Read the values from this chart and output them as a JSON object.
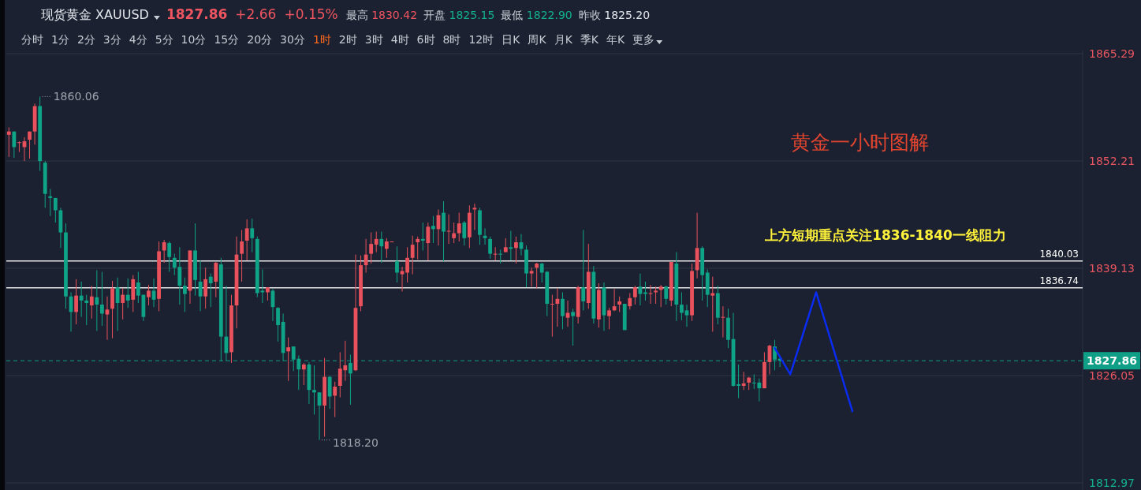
{
  "chart_data": {
    "type": "candlestick",
    "title": "现货黄金 XAUUSD",
    "annotations": [
      "1827.86",
      "+2.66",
      "+0.15%",
      "最高 1830.42",
      "开盘 1825.15",
      "最低 1822.90",
      "昨收 1825.20",
      "分时",
      "1分",
      "2分",
      "3分",
      "4分",
      "5分",
      "10分",
      "15分",
      "20分",
      "30分",
      "1时",
      "2时",
      "3时",
      "4时",
      "6时",
      "8时",
      "12时",
      "日K",
      "周K",
      "月K",
      "季K",
      "年K",
      "更多",
      "黄金一小时图解",
      "上方短期重点关注1836-1840一线阻力",
      "1860.06",
      "1818.20"
    ],
    "categories": [
      null,
      null,
      null,
      null,
      null,
      null,
      null,
      null,
      null,
      null,
      null,
      null,
      null,
      null,
      null,
      null,
      null,
      null,
      null,
      null,
      null,
      null,
      null,
      null,
      null,
      null,
      null,
      null,
      null,
      null,
      null,
      null,
      null,
      null,
      null,
      null,
      null,
      null,
      null,
      null,
      null,
      null,
      null,
      null,
      null,
      null,
      null,
      null,
      null,
      null,
      null,
      null,
      null,
      null,
      null,
      null,
      null,
      null,
      null,
      null,
      null,
      null,
      null,
      null,
      null,
      null,
      null,
      null,
      null,
      null,
      null,
      null,
      null,
      null,
      null,
      null,
      null,
      null,
      null,
      null,
      null,
      null,
      null,
      null,
      null,
      null,
      null,
      null,
      null,
      null,
      null,
      null,
      null,
      null,
      null,
      null,
      null,
      null,
      null,
      null,
      null,
      null,
      null,
      null,
      null,
      null,
      null,
      null,
      null,
      null,
      null,
      null,
      null,
      null,
      null,
      null,
      null,
      null,
      null,
      null,
      null,
      null,
      null,
      null,
      null,
      null,
      null,
      null,
      null,
      null,
      null,
      null,
      null,
      null,
      null,
      null,
      null,
      null,
      null,
      null,
      null,
      null,
      null,
      null,
      null,
      null,
      null,
      null,
      null,
      null,
      null,
      null,
      null,
      null,
      null,
      null,
      null,
      null,
      null,
      null,
      null,
      null,
      null,
      null,
      null,
      null,
      null,
      null,
      null,
      null,
      null,
      null,
      null,
      null,
      null,
      null,
      null,
      null,
      null,
      null,
      null,
      null,
      null,
      null,
      null,
      null,
      null,
      null,
      null,
      null,
      null,
      null,
      null,
      null,
      null,
      null,
      null,
      null,
      null,
      null,
      null,
      null,
      null,
      null,
      null,
      null,
      null,
      null
    ],
    "ohlc": [
      [
        1855.4,
        1856.3,
        1852.7,
        1855.8
      ],
      [
        1855.8,
        1855.8,
        1852.6,
        1853.9
      ],
      [
        1854.4,
        1854.6,
        1853.3,
        1854.5
      ],
      [
        1853.9,
        1855.1,
        1852.2,
        1854.6
      ],
      [
        1854.8,
        1855.8,
        1852.5,
        1855.8
      ],
      [
        1855.8,
        1859.2,
        1854.2,
        1858.9
      ],
      [
        1858.9,
        1860.06,
        1851.0,
        1852.2
      ],
      [
        1852.0,
        1852.2,
        1846.5,
        1848.2
      ],
      [
        1847.9,
        1848.8,
        1845.5,
        1847.7
      ],
      [
        1847.7,
        1847.7,
        1844.7,
        1846.2
      ],
      [
        1846.2,
        1846.5,
        1841.6,
        1843.5
      ],
      [
        1843.5,
        1844.6,
        1834.2,
        1835.7
      ],
      [
        1835.7,
        1836.2,
        1831.4,
        1833.8
      ],
      [
        1833.8,
        1837.8,
        1832.3,
        1835.8
      ],
      [
        1835.8,
        1837.5,
        1833.2,
        1835.2
      ],
      [
        1835.2,
        1835.9,
        1832.2,
        1834.9
      ],
      [
        1834.6,
        1837.0,
        1833.0,
        1835.7
      ],
      [
        1835.6,
        1838.9,
        1831.5,
        1834.7
      ],
      [
        1834.7,
        1838.7,
        1832.1,
        1833.6
      ],
      [
        1833.5,
        1835.7,
        1830.4,
        1834.1
      ],
      [
        1834.2,
        1837.6,
        1830.6,
        1836.7
      ],
      [
        1836.8,
        1838.0,
        1831.5,
        1834.9
      ],
      [
        1834.9,
        1836.7,
        1832.9,
        1835.9
      ],
      [
        1835.9,
        1837.9,
        1834.3,
        1835.2
      ],
      [
        1835.3,
        1838.3,
        1833.8,
        1837.8
      ],
      [
        1837.4,
        1838.7,
        1834.9,
        1835.8
      ],
      [
        1835.9,
        1835.9,
        1832.7,
        1833.2
      ],
      [
        1835.6,
        1837.1,
        1834.6,
        1836.4
      ],
      [
        1836.4,
        1837.9,
        1834.4,
        1835.3
      ],
      [
        1835.4,
        1842.4,
        1833.9,
        1841.2
      ],
      [
        1841.3,
        1842.6,
        1839.8,
        1842.3
      ],
      [
        1842.2,
        1842.4,
        1838.7,
        1840.5
      ],
      [
        1840.4,
        1840.9,
        1838.3,
        1839.2
      ],
      [
        1839.3,
        1841.7,
        1834.7,
        1837.0
      ],
      [
        1837.0,
        1838.0,
        1833.8,
        1836.0
      ],
      [
        1836.4,
        1841.3,
        1834.8,
        1841.3
      ],
      [
        1841.3,
        1844.6,
        1835.8,
        1837.7
      ],
      [
        1837.5,
        1840.1,
        1833.9,
        1835.7
      ],
      [
        1835.7,
        1839.2,
        1834.2,
        1837.8
      ],
      [
        1838.1,
        1838.5,
        1834.4,
        1837.3
      ],
      [
        1837.5,
        1839.9,
        1835.6,
        1839.8
      ],
      [
        1839.6,
        1840.4,
        1827.8,
        1830.8
      ],
      [
        1830.8,
        1837.0,
        1827.8,
        1828.8
      ],
      [
        1828.9,
        1835.9,
        1827.6,
        1834.6
      ],
      [
        1834.6,
        1843.0,
        1831.8,
        1840.8
      ],
      [
        1840.9,
        1843.8,
        1837.5,
        1842.4
      ],
      [
        1842.5,
        1845.1,
        1840.1,
        1844.0
      ],
      [
        1844.0,
        1845.2,
        1841.1,
        1842.8
      ],
      [
        1842.7,
        1843.0,
        1835.6,
        1836.1
      ],
      [
        1836.4,
        1839.0,
        1834.9,
        1836.2
      ],
      [
        1836.2,
        1836.8,
        1835.2,
        1836.8
      ],
      [
        1836.4,
        1836.6,
        1832.7,
        1834.4
      ],
      [
        1834.3,
        1834.4,
        1830.2,
        1832.2
      ],
      [
        1832.6,
        1833.6,
        1827.8,
        1828.8
      ],
      [
        1829.0,
        1830.7,
        1825.4,
        1829.5
      ],
      [
        1829.6,
        1829.6,
        1826.6,
        1828.0
      ],
      [
        1828.1,
        1828.5,
        1824.3,
        1826.8
      ],
      [
        1826.8,
        1827.6,
        1824.9,
        1827.4
      ],
      [
        1827.4,
        1827.7,
        1822.6,
        1824.3
      ],
      [
        1824.3,
        1827.3,
        1821.3,
        1824.0
      ],
      [
        1824.0,
        1824.0,
        1818.2,
        1822.4
      ],
      [
        1822.4,
        1828.2,
        1818.6,
        1825.9
      ],
      [
        1825.9,
        1826.0,
        1822.0,
        1823.5
      ],
      [
        1823.6,
        1825.3,
        1821.0,
        1824.7
      ],
      [
        1824.8,
        1828.9,
        1823.4,
        1826.9
      ],
      [
        1826.7,
        1830.3,
        1825.4,
        1827.3
      ],
      [
        1827.6,
        1828.6,
        1822.5,
        1826.3
      ],
      [
        1826.7,
        1840.8,
        1826.6,
        1834.3
      ],
      [
        1834.5,
        1840.7,
        1833.9,
        1839.5
      ],
      [
        1839.5,
        1842.7,
        1838.6,
        1840.8
      ],
      [
        1840.9,
        1843.5,
        1839.7,
        1842.1
      ],
      [
        1842.0,
        1843.6,
        1841.1,
        1842.7
      ],
      [
        1842.7,
        1843.6,
        1839.8,
        1841.8
      ],
      [
        1841.5,
        1842.8,
        1840.4,
        1842.4
      ],
      [
        1842.3,
        1842.4,
        1842.3,
        1842.4
      ],
      [
        1840.0,
        1841.8,
        1837.4,
        1838.6
      ],
      [
        1838.4,
        1839.3,
        1836.3,
        1838.8
      ],
      [
        1838.6,
        1841.7,
        1837.4,
        1840.4
      ],
      [
        1840.4,
        1843.1,
        1838.4,
        1842.0
      ],
      [
        1842.3,
        1843.0,
        1840.2,
        1842.7
      ],
      [
        1842.7,
        1844.7,
        1841.3,
        1842.5
      ],
      [
        1842.2,
        1844.7,
        1840.1,
        1844.2
      ],
      [
        1844.3,
        1845.5,
        1842.2,
        1843.9
      ],
      [
        1843.9,
        1846.3,
        1841.9,
        1845.6
      ],
      [
        1845.9,
        1847.3,
        1840.0,
        1843.6
      ],
      [
        1843.6,
        1845.7,
        1842.1,
        1843.7
      ],
      [
        1842.8,
        1844.7,
        1842.2,
        1843.4
      ],
      [
        1843.4,
        1845.9,
        1842.4,
        1844.6
      ],
      [
        1844.7,
        1844.9,
        1841.9,
        1842.8
      ],
      [
        1842.9,
        1846.8,
        1841.6,
        1845.9
      ],
      [
        1846.3,
        1847.0,
        1843.8,
        1846.5
      ],
      [
        1846.2,
        1846.5,
        1842.0,
        1843.2
      ],
      [
        1843.1,
        1844.0,
        1842.0,
        1842.8
      ],
      [
        1842.7,
        1843.0,
        1840.3,
        1840.9
      ],
      [
        1840.8,
        1841.7,
        1840.1,
        1840.9
      ],
      [
        1840.9,
        1841.4,
        1839.7,
        1840.8
      ],
      [
        1841.1,
        1842.8,
        1841.1,
        1841.7
      ],
      [
        1841.7,
        1843.7,
        1840.1,
        1841.5
      ],
      [
        1841.6,
        1843.0,
        1839.7,
        1842.3
      ],
      [
        1842.3,
        1843.3,
        1840.7,
        1841.5
      ],
      [
        1841.4,
        1841.9,
        1836.8,
        1838.5
      ],
      [
        1838.5,
        1839.2,
        1836.9,
        1838.8
      ],
      [
        1839.2,
        1839.8,
        1836.7,
        1839.7
      ],
      [
        1839.7,
        1839.8,
        1837.4,
        1838.6
      ],
      [
        1838.7,
        1838.8,
        1833.3,
        1834.8
      ],
      [
        1834.7,
        1835.9,
        1830.8,
        1834.8
      ],
      [
        1834.8,
        1836.7,
        1832.0,
        1835.4
      ],
      [
        1835.4,
        1836.2,
        1831.7,
        1833.3
      ],
      [
        1833.1,
        1835.2,
        1832.0,
        1833.7
      ],
      [
        1833.8,
        1834.2,
        1829.7,
        1833.3
      ],
      [
        1833.2,
        1837.0,
        1832.4,
        1836.8
      ],
      [
        1836.8,
        1843.8,
        1834.0,
        1835.1
      ],
      [
        1834.9,
        1842.1,
        1834.2,
        1838.7
      ],
      [
        1838.7,
        1839.4,
        1832.4,
        1833.0
      ],
      [
        1832.9,
        1837.3,
        1831.9,
        1836.5
      ],
      [
        1836.8,
        1837.4,
        1831.5,
        1833.4
      ],
      [
        1833.3,
        1834.3,
        1831.7,
        1834.0
      ],
      [
        1834.0,
        1836.6,
        1833.9,
        1834.5
      ],
      [
        1834.7,
        1835.7,
        1833.8,
        1835.1
      ],
      [
        1834.8,
        1834.8,
        1831.6,
        1831.6
      ],
      [
        1834.5,
        1836.1,
        1834.1,
        1835.5
      ],
      [
        1835.6,
        1837.0,
        1834.7,
        1836.8
      ],
      [
        1836.9,
        1838.5,
        1834.6,
        1836.0
      ],
      [
        1836.2,
        1837.5,
        1835.2,
        1836.0
      ],
      [
        1836.0,
        1837.1,
        1834.8,
        1836.1
      ],
      [
        1836.2,
        1836.9,
        1834.8,
        1836.4
      ],
      [
        1836.5,
        1837.1,
        1834.4,
        1836.9
      ],
      [
        1836.9,
        1837.0,
        1834.7,
        1835.4
      ],
      [
        1835.2,
        1839.9,
        1834.5,
        1839.9
      ],
      [
        1839.7,
        1841.1,
        1832.7,
        1834.7
      ],
      [
        1834.7,
        1836.2,
        1832.8,
        1833.7
      ],
      [
        1834.0,
        1834.7,
        1832.0,
        1833.4
      ],
      [
        1833.4,
        1839.7,
        1832.7,
        1838.8
      ],
      [
        1838.9,
        1845.9,
        1837.9,
        1841.6
      ],
      [
        1841.6,
        1841.8,
        1835.2,
        1838.3
      ],
      [
        1838.6,
        1839.0,
        1834.4,
        1835.9
      ],
      [
        1835.8,
        1838.1,
        1831.4,
        1836.1
      ],
      [
        1836.1,
        1837.0,
        1832.3,
        1833.1
      ],
      [
        1833.1,
        1834.5,
        1830.7,
        1833.2
      ],
      [
        1833.1,
        1834.2,
        1829.4,
        1830.4
      ],
      [
        1830.5,
        1833.7,
        1824.7,
        1824.8
      ],
      [
        1825.0,
        1827.4,
        1823.3,
        1824.8
      ],
      [
        1824.8,
        1826.5,
        1824.3,
        1825.1
      ],
      [
        1825.2,
        1825.9,
        1824.3,
        1825.8
      ],
      [
        1825.2,
        1826.2,
        1824.4,
        1825.1
      ],
      [
        1825.2,
        1825.7,
        1822.9,
        1824.5
      ],
      [
        1824.5,
        1828.9,
        1824.5,
        1827.7
      ],
      [
        1827.7,
        1829.8,
        1826.2,
        1829.7
      ],
      [
        1829.6,
        1830.4,
        1826.7,
        1828.0
      ],
      [
        1828.1,
        1828.3,
        1827.1,
        1827.86
      ],
      null,
      null,
      null,
      null,
      null,
      null,
      null,
      null,
      null,
      null,
      null,
      null,
      null,
      null,
      null,
      null,
      null,
      null,
      null,
      null,
      null,
      null,
      null,
      null,
      null,
      null,
      null,
      null,
      null,
      null,
      null,
      null,
      null,
      null,
      null,
      null,
      null,
      null,
      null,
      null,
      null,
      null,
      null,
      null,
      null,
      null,
      null,
      null,
      null,
      null,
      null,
      null,
      null,
      null,
      null,
      null,
      null,
      null
    ],
    "series": [
      {
        "type": "line",
        "color": "#0a2cf0",
        "values": [
          null,
          null,
          null,
          null,
          null,
          null,
          null,
          null,
          null,
          null,
          null,
          null,
          null,
          null,
          null,
          null,
          null,
          null,
          null,
          null,
          null,
          null,
          null,
          null,
          null,
          null,
          null,
          null,
          null,
          null,
          null,
          null,
          null,
          null,
          null,
          null,
          null,
          null,
          null,
          null,
          null,
          null,
          null,
          null,
          null,
          null,
          null,
          null,
          null,
          null,
          null,
          null,
          null,
          null,
          null,
          null,
          null,
          null,
          null,
          null,
          null,
          null,
          null,
          null,
          null,
          null,
          null,
          null,
          null,
          null,
          null,
          null,
          null,
          null,
          null,
          null,
          null,
          null,
          null,
          null,
          null,
          null,
          null,
          null,
          null,
          null,
          null,
          null,
          null,
          null,
          null,
          null,
          null,
          null,
          null,
          null,
          null,
          null,
          null,
          null,
          null,
          null,
          null,
          null,
          null,
          null,
          null,
          null,
          null,
          null,
          null,
          null,
          null,
          null,
          null,
          null,
          null,
          null,
          null,
          null,
          null,
          null,
          null,
          null,
          null,
          null,
          null,
          null,
          null,
          null,
          null,
          null,
          null,
          null,
          null,
          null,
          null,
          null,
          null,
          null,
          null,
          null,
          null,
          null,
          null,
          null,
          null,
          null,
          1829.4,
          null,
          null,
          1826.2,
          null,
          null,
          null,
          null,
          1836.2,
          null,
          null,
          null,
          null,
          null,
          null,
          1821.7,
          null,
          null,
          null,
          null,
          null,
          null,
          null,
          null,
          null,
          null,
          null,
          null,
          null,
          null,
          null,
          null,
          null,
          null,
          null,
          null,
          null,
          null,
          null,
          null,
          null,
          null,
          null,
          null,
          null,
          null,
          null,
          null,
          null,
          null,
          null,
          null,
          null,
          null,
          null,
          null,
          null,
          null,
          null,
          null
        ]
      }
    ],
    "ylim": [
      1812.97,
      1865.29
    ],
    "yticks": [
      1812.97,
      1826.05,
      1839.13,
      1852.21,
      1865.29
    ],
    "ref_lines": [
      {
        "axis": "y",
        "value": 1840.03,
        "label": "1840.03",
        "color": "#e8e8e8",
        "line_style": "solid"
      },
      {
        "axis": "y",
        "value": 1836.74,
        "label": "1836.74",
        "color": "#e8e8e8",
        "line_style": "solid"
      },
      {
        "axis": "y",
        "value": 1827.86,
        "label": "1827.86",
        "color": "#0f9e86",
        "line_style": "dashed"
      }
    ],
    "grid": "y",
    "tick_labels": "y"
  }
}
